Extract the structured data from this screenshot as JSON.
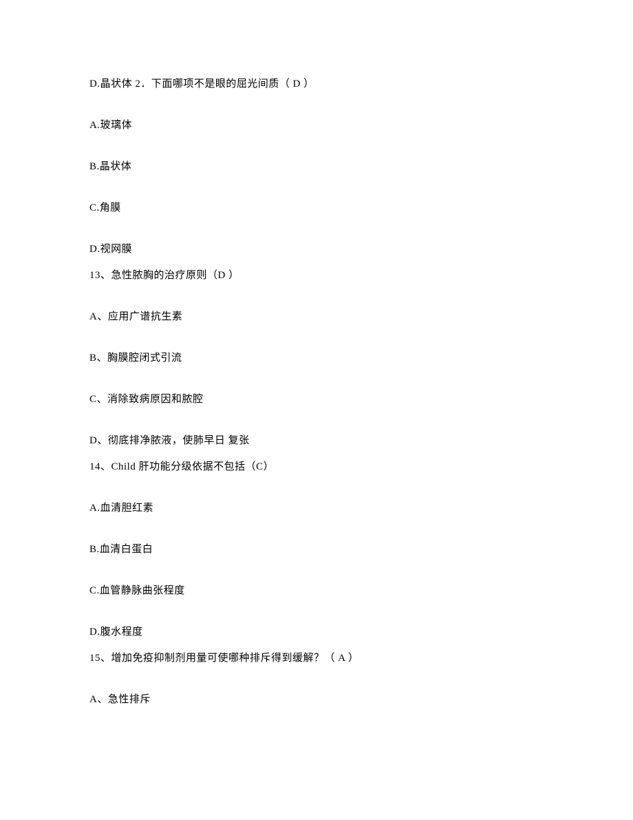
{
  "background_color": "#ffffff",
  "text_color": "#000000",
  "font_size_pt": 11,
  "font_family": "SimSun",
  "lines": {
    "l01": "D.晶状体  2．下面哪项不是眼的屈光间质（ D ）",
    "l02": "A.玻璃体",
    "l03": "B.晶状体",
    "l04": "C.角膜",
    "l05": "D.视网膜",
    "l06": "13、急性脓胸的治疗原则（D ）",
    "l07": "A、应用广谱抗生素",
    "l08": "B、胸膜腔闭式引流",
    "l09": "C、消除致病原因和脓腔",
    "l10": "D、彻底排净脓液，使肺早日 复张",
    "l11": "14、Child 肝功能分级依据不包括（C）",
    "l12": "A.血清胆红素",
    "l13": "B.血清白蛋白",
    "l14": "C.血管静脉曲张程度",
    "l15": "D.腹水程度",
    "l16": "15、增加免疫抑制剂用量可使哪种排斥得到缓解？（ A ）",
    "l17": "A、急性排斥"
  }
}
